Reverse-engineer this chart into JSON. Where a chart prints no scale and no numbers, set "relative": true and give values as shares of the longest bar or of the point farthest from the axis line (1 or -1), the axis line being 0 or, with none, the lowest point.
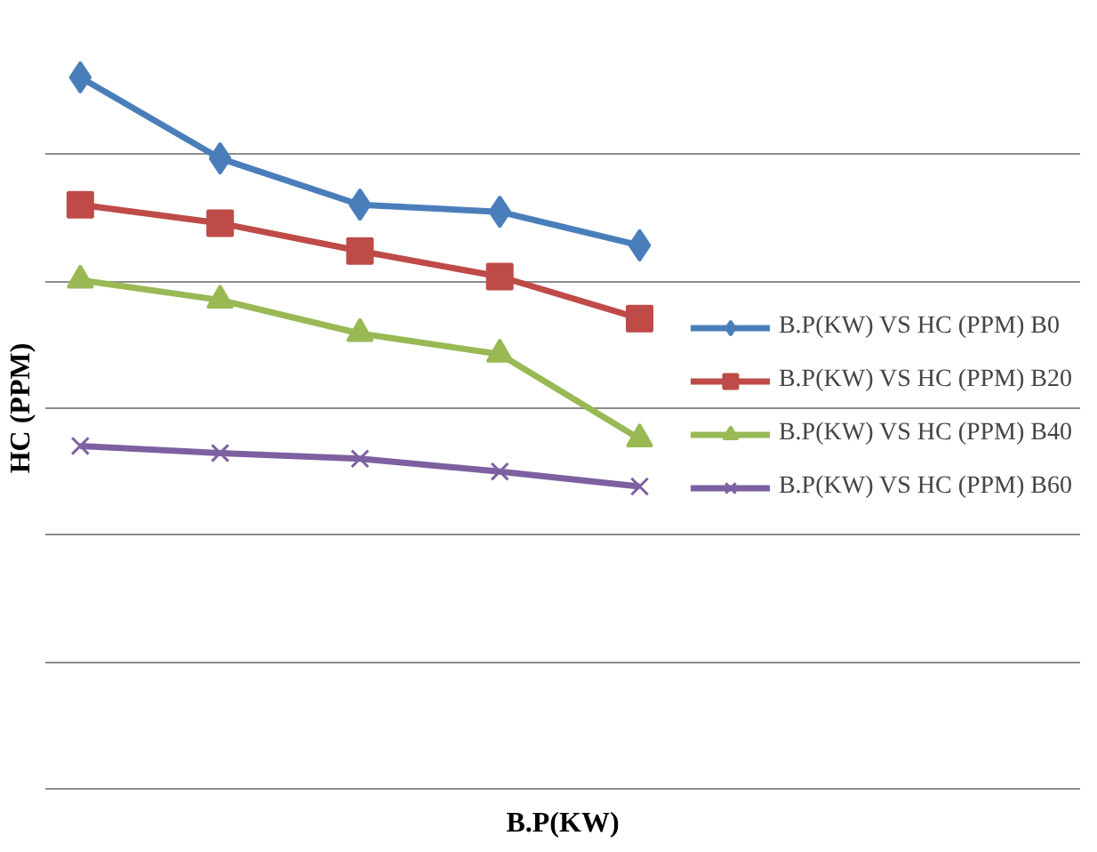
{
  "chart_data": {
    "type": "line",
    "xlabel": "B.P(KW)",
    "ylabel": "HC (PPM)",
    "relative": true,
    "grid": "y",
    "legend": "right",
    "categories": [
      null,
      null,
      null,
      null,
      null
    ],
    "series": [
      {
        "name": "B.P(KW) VS HC (PPM) B0",
        "color": "#4a7ebb",
        "marker": "diamond",
        "values": [
          1,
          0.886,
          0.821,
          0.811,
          0.764
        ]
      },
      {
        "name": "B.P(KW) VS HC (PPM) B20",
        "color": "#be4b48",
        "marker": "square",
        "values": [
          0.821,
          0.795,
          0.756,
          0.72,
          0.661
        ]
      },
      {
        "name": "B.P(KW) VS HC (PPM) B40",
        "color": "#98b954",
        "marker": "triangle",
        "values": [
          0.715,
          0.687,
          0.64,
          0.611,
          0.492
        ]
      },
      {
        "name": "B.P(KW) VS HC (PPM) B60",
        "color": "#7d60a0",
        "marker": "cross",
        "values": [
          0.482,
          0.472,
          0.464,
          0.446,
          0.425
        ]
      }
    ]
  }
}
